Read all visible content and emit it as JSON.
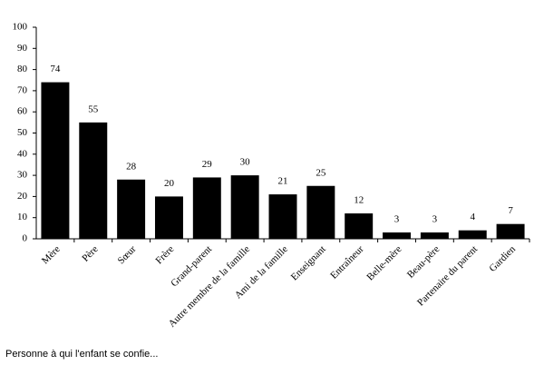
{
  "chart_data": {
    "type": "bar",
    "categories": [
      "Mère",
      "Père",
      "Sœur",
      "Frère",
      "Grand-parent",
      "Autre membre de la famille",
      "Ami de la famille",
      "Enseignant",
      "Entraîneur",
      "Belle-mère",
      "Beau-père",
      "Partenaire du parent",
      "Gardien"
    ],
    "values": [
      74,
      55,
      28,
      20,
      29,
      30,
      21,
      25,
      12,
      3,
      3,
      4,
      7
    ],
    "color": "#000000",
    "ylim": [
      0,
      100
    ],
    "yticks": [
      0,
      10,
      20,
      30,
      40,
      50,
      60,
      70,
      80,
      90,
      100
    ],
    "xlabel": "Personne à qui l'enfant se confie...",
    "grid": false
  }
}
